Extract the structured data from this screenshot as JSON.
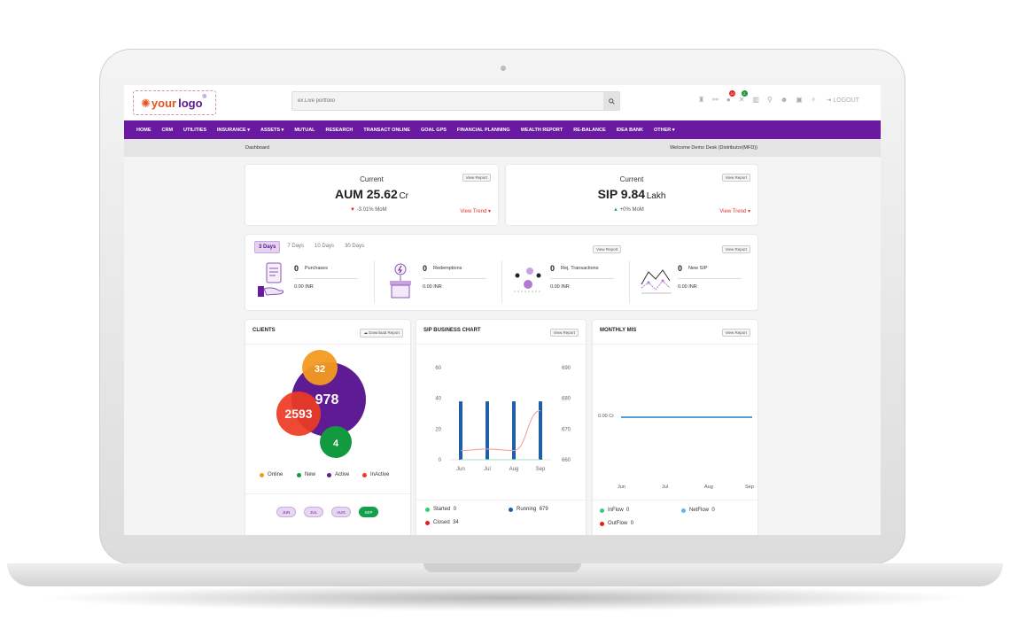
{
  "search": {
    "placeholder": "ex.Live portfolio"
  },
  "logo": {
    "your": "your",
    "logo": "logo",
    "reg": "®"
  },
  "header": {
    "badges": [
      "10",
      "2"
    ],
    "logout": "LOGOUT"
  },
  "nav": [
    "HOME",
    "CRM",
    "UTILITIES",
    "INSURANCE ▾",
    "ASSETS ▾",
    "MUTUAL",
    "RESEARCH",
    "TRANSACT ONLINE",
    "GOAL GPS",
    "FINANCIAL PLANNING",
    "WEALTH REPORT",
    "RE-BALANCE",
    "IDEA BANK",
    "OTHER ▾"
  ],
  "breadcrumb": "Dashboard",
  "welcome": "Welcome Demo Desk (Distributor(MFD))",
  "aum": {
    "current": "Current",
    "label": "AUM 25.62",
    "unit": "Cr",
    "mom": "-3.01% MoM",
    "view_report": "View Report",
    "view_trend": "View Trend ▾"
  },
  "sip": {
    "current": "Current",
    "label": "SIP 9.84",
    "unit": "Lakh",
    "mom": "+0% MoM",
    "view_report": "View Report",
    "view_trend": "View Trend ▾"
  },
  "activity": {
    "tabs": [
      "3 Days",
      "7 Days",
      "10 Days",
      "30 Days"
    ],
    "view_report": "View Report",
    "view_report_2": "View Report",
    "stats": [
      {
        "count": "0",
        "label": "Purchases",
        "amount": "0.00 INR"
      },
      {
        "count": "0",
        "label": "Redemptions",
        "amount": "0.00 INR"
      },
      {
        "count": "0",
        "label": "Rej. Transactions",
        "amount": "0.00 INR"
      },
      {
        "count": "0",
        "label": "New SIP",
        "amount": "0.00 INR"
      }
    ]
  },
  "clients": {
    "title": "CLIENTS",
    "download": "Download Report",
    "bubbles": {
      "active": "978",
      "online": "32",
      "inactive": "2593",
      "new": "4"
    },
    "legend": [
      "Online",
      "New",
      "Active",
      "InActive"
    ],
    "months": [
      "JUN",
      "JUL",
      "AUG",
      "SEP"
    ]
  },
  "sip_chart": {
    "title": "SIP BUSINESS CHART",
    "view_report": "View Report",
    "stats": {
      "started": "Started",
      "started_val": "0",
      "running": "Running",
      "running_val": "679",
      "closed": "Closed",
      "closed_val": "34"
    }
  },
  "mis": {
    "title": "MONTHLY MIS",
    "view_report": "View Report",
    "value_label": "0.00 Cr",
    "months": [
      "Jun",
      "Jul",
      "Aug",
      "Sep"
    ],
    "stats": {
      "inflow": "InFlow",
      "inflow_val": "0",
      "netflow": "NetFlow",
      "netflow_val": "0",
      "outflow": "OutFlow",
      "outflow_val": "0"
    }
  },
  "chart_data": {
    "type": "bar",
    "title": "SIP BUSINESS CHART",
    "categories": [
      "Jun",
      "Jul",
      "Aug",
      "Sep"
    ],
    "y_left_ticks": [
      "0",
      "20",
      "40",
      "60"
    ],
    "y_right_ticks": [
      "660",
      "670",
      "680",
      "690"
    ],
    "ylim_left": [
      0,
      60
    ],
    "ylim_right": [
      660,
      690
    ],
    "series": [
      {
        "type": "bar",
        "axis": "left",
        "color": "#1f5fa8",
        "values": [
          38,
          38,
          38,
          38
        ]
      },
      {
        "type": "line",
        "axis": "left",
        "color": "#f29a9a",
        "values": [
          6,
          7,
          6,
          32
        ]
      },
      {
        "type": "line",
        "axis": "left",
        "color": "#9ee6d6",
        "values": [
          0,
          0,
          0,
          0
        ]
      }
    ]
  },
  "colors": {
    "nav": "#6a1aa1",
    "active": "#5e1b93",
    "online": "#f39a1f",
    "inactive": "#ee3a22",
    "new": "#139a3e",
    "accent_red": "#e03434",
    "green": "#1bb05a"
  }
}
